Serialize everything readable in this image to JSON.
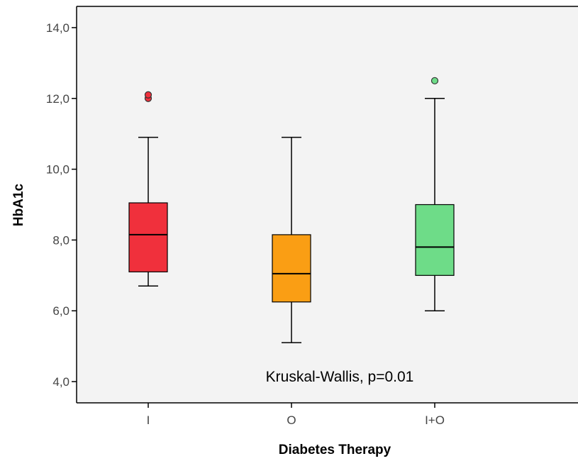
{
  "chart_data": {
    "type": "boxplot",
    "title": "",
    "xlabel": "Diabetes Therapy",
    "ylabel": "HbA1c",
    "ylim": [
      3.4,
      14.6
    ],
    "yticks": [
      4,
      6,
      8,
      10,
      12,
      14
    ],
    "ytick_labels": [
      "4,0",
      "6,0",
      "8,0",
      "10,0",
      "12,0",
      "14,0"
    ],
    "grid": false,
    "legend": "none",
    "plot_background": "#f3f3f3",
    "categories": [
      "I",
      "O",
      "I+O"
    ],
    "boxes": [
      {
        "category": "I",
        "whisker_low": 6.7,
        "q1": 7.1,
        "median": 8.15,
        "q3": 9.05,
        "whisker_high": 10.9,
        "outliers": [
          12.0,
          12.1
        ],
        "color": "#f0303c"
      },
      {
        "category": "O",
        "whisker_low": 5.1,
        "q1": 6.25,
        "median": 7.05,
        "q3": 8.15,
        "whisker_high": 10.9,
        "outliers": [],
        "color": "#fa9e14"
      },
      {
        "category": "I+O",
        "whisker_low": 6.0,
        "q1": 7.0,
        "median": 7.8,
        "q3": 9.0,
        "whisker_high": 12.0,
        "outliers": [
          12.5
        ],
        "color": "#6edc88"
      }
    ],
    "annotations": [
      {
        "text": "Kruskal-Wallis, p=0.01"
      }
    ]
  }
}
